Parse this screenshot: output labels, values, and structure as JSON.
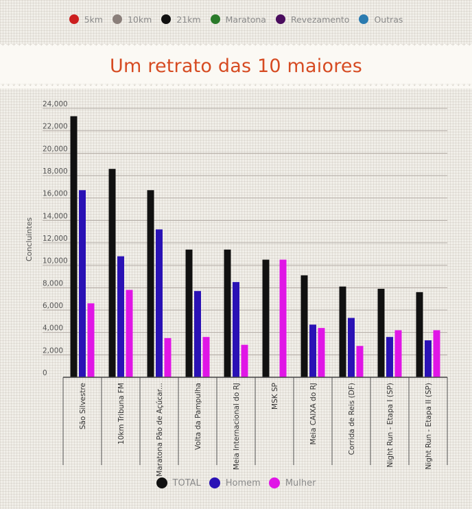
{
  "top_legend": [
    {
      "label": "5km",
      "color": "#cc1f1f"
    },
    {
      "label": "10km",
      "color": "#8a7f7a"
    },
    {
      "label": "21km",
      "color": "#111111"
    },
    {
      "label": "Maratona",
      "color": "#2a7a2a"
    },
    {
      "label": "Revezamento",
      "color": "#4a0d5e"
    },
    {
      "label": "Outras",
      "color": "#2b7bb0"
    }
  ],
  "header": {
    "title": "Um retrato das 10 maiores"
  },
  "chart_data": {
    "type": "bar",
    "ylabel": "Concluintes",
    "ylim": [
      0,
      24000
    ],
    "yticks": [
      "0",
      "2,000",
      "4,000",
      "6,000",
      "8,000",
      "10,000",
      "12,000",
      "14,000",
      "16,000",
      "18,000",
      "20,000",
      "22,000",
      "24,000"
    ],
    "categories": [
      "São Silvestre",
      "10km Tribuna FM",
      "Maratona Pão de Açúcar...",
      "Volta da Pampulha",
      "Meia Internacional do RJ",
      "MSK SP",
      "Meia CAIXA do RJ",
      "Corrida de Reis (DF)",
      "Night Run - Etapa I (SP)",
      "Night Run - Etapa II (SP)"
    ],
    "series": [
      {
        "name": "TOTAL",
        "color": "#111111",
        "values": [
          23300,
          18600,
          16700,
          11400,
          11400,
          10500,
          9100,
          8100,
          7900,
          7600
        ]
      },
      {
        "name": "Homem",
        "color": "#2a12b5",
        "values": [
          16700,
          10800,
          13200,
          7700,
          8500,
          0,
          4700,
          5300,
          3600,
          3300
        ]
      },
      {
        "name": "Mulher",
        "color": "#e016e6",
        "values": [
          6600,
          7800,
          3500,
          3600,
          2900,
          10500,
          4400,
          2800,
          4200,
          4200
        ]
      }
    ]
  }
}
